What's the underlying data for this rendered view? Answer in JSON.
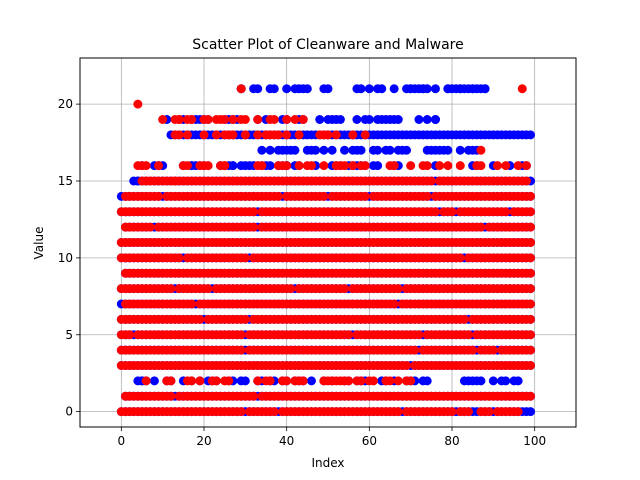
{
  "chart_data": {
    "type": "scatter",
    "title": "Scatter Plot of Cleanware and Malware",
    "xlabel": "Index",
    "ylabel": "Value",
    "xlim": [
      -10,
      110
    ],
    "ylim": [
      -1,
      23
    ],
    "xticks": [
      0,
      20,
      40,
      60,
      80,
      100
    ],
    "yticks": [
      0,
      5,
      10,
      15,
      20
    ],
    "grid": true,
    "series": [
      {
        "name": "Cleanware",
        "color": "#0000ff",
        "bands": [
          {
            "y": 0,
            "x": [
              0,
              99
            ]
          },
          {
            "y": 1,
            "x": [
              1,
              99
            ]
          },
          {
            "y": 2,
            "x": [
              2,
              99
            ],
            "sparse": true
          },
          {
            "y": 3,
            "x": [
              0,
              99
            ]
          },
          {
            "y": 4,
            "x": [
              0,
              99
            ]
          },
          {
            "y": 5,
            "x": [
              0,
              99
            ]
          },
          {
            "y": 6,
            "x": [
              0,
              99
            ]
          },
          {
            "y": 7,
            "x": [
              0,
              99
            ]
          },
          {
            "y": 8,
            "x": [
              0,
              99
            ]
          },
          {
            "y": 9,
            "x": [
              1,
              99
            ]
          },
          {
            "y": 10,
            "x": [
              0,
              99
            ]
          },
          {
            "y": 11,
            "x": [
              0,
              99
            ]
          },
          {
            "y": 12,
            "x": [
              1,
              99
            ]
          },
          {
            "y": 13,
            "x": [
              0,
              99
            ]
          },
          {
            "y": 14,
            "x": [
              0,
              99
            ]
          },
          {
            "y": 15,
            "x": [
              3,
              99
            ]
          },
          {
            "y": 16,
            "x": [
              3,
              99
            ],
            "sparse": true
          },
          {
            "y": 17,
            "x": [
              34,
              87
            ],
            "sparse": true
          },
          {
            "y": 18,
            "x": [
              12,
              99
            ]
          },
          {
            "y": 19,
            "x": [
              10,
              76
            ],
            "sparse": true
          },
          {
            "y": 21,
            "x": [
              29,
              88
            ],
            "sparse": true
          }
        ],
        "points": [
          [
            70,
            21
          ],
          [
            73,
            21
          ],
          [
            76,
            21
          ],
          [
            79,
            21
          ],
          [
            82,
            21
          ],
          [
            85,
            21
          ],
          [
            88,
            21
          ],
          [
            29,
            21
          ],
          [
            33,
            21
          ],
          [
            76,
            19
          ],
          [
            48,
            19
          ],
          [
            40,
            17
          ],
          [
            34,
            17
          ],
          [
            40,
            16
          ],
          [
            17,
            16
          ],
          [
            27,
            16
          ],
          [
            4,
            15
          ],
          [
            5,
            2
          ],
          [
            21,
            2
          ],
          [
            40,
            16
          ]
        ]
      },
      {
        "name": "Malware",
        "color": "#ff0000",
        "bands": [
          {
            "y": 0,
            "x": [
              0,
              96
            ]
          },
          {
            "y": 1,
            "x": [
              1,
              99
            ]
          },
          {
            "y": 2,
            "x": [
              2,
              70
            ],
            "sparse": true
          },
          {
            "y": 3,
            "x": [
              0,
              99
            ]
          },
          {
            "y": 4,
            "x": [
              0,
              99
            ]
          },
          {
            "y": 5,
            "x": [
              0,
              99
            ]
          },
          {
            "y": 6,
            "x": [
              0,
              99
            ]
          },
          {
            "y": 7,
            "x": [
              0,
              99
            ]
          },
          {
            "y": 8,
            "x": [
              0,
              99
            ]
          },
          {
            "y": 9,
            "x": [
              1,
              99
            ]
          },
          {
            "y": 10,
            "x": [
              0,
              99
            ]
          },
          {
            "y": 11,
            "x": [
              0,
              99
            ]
          },
          {
            "y": 12,
            "x": [
              1,
              99
            ]
          },
          {
            "y": 13,
            "x": [
              0,
              99
            ]
          },
          {
            "y": 14,
            "x": [
              1,
              99
            ]
          },
          {
            "y": 15,
            "x": [
              5,
              99
            ]
          },
          {
            "y": 16,
            "x": [
              3,
              99
            ],
            "sparse": true
          },
          {
            "y": 18,
            "x": [
              12,
              60
            ],
            "sparse": true
          },
          {
            "y": 19,
            "x": [
              10,
              45
            ],
            "sparse": true
          }
        ],
        "points": [
          [
            4,
            20
          ],
          [
            29,
            21
          ],
          [
            97,
            21
          ],
          [
            87,
            17
          ],
          [
            13,
            15
          ],
          [
            6,
            15
          ],
          [
            10,
            19
          ],
          [
            14,
            19
          ],
          [
            17,
            19
          ],
          [
            33,
            19
          ],
          [
            36,
            19
          ],
          [
            44,
            19
          ],
          [
            30,
            18
          ],
          [
            50,
            18
          ],
          [
            59,
            18
          ],
          [
            25,
            16
          ],
          [
            49,
            16
          ],
          [
            45,
            16
          ]
        ]
      }
    ]
  }
}
